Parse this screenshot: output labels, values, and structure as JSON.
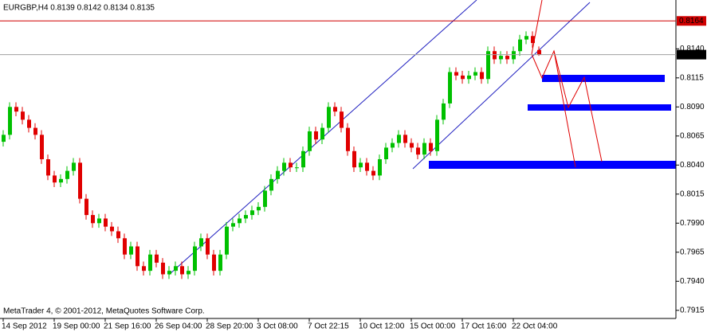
{
  "chart_data": {
    "type": "candlestick",
    "title": "EURGBP,H4  0.8139 0.8142 0.8134 0.8135",
    "footer": "MetaTrader 4, © 2001-2012, MetaQuotes Software Corp.",
    "up_color": "#00c000",
    "down_color": "#e00000",
    "ylim": [
      0.7908,
      0.8182
    ],
    "yticks": [
      {
        "value": 0.814,
        "label": "0.8140"
      },
      0.8115,
      {
        "value": 0.809,
        "label": "0.8090"
      },
      0.8065,
      {
        "value": 0.804,
        "label": "0.8040"
      },
      0.8015,
      {
        "value": 0.799,
        "label": "0.7990"
      },
      0.7965,
      {
        "value": 0.794,
        "label": "0.7940"
      },
      0.7915
    ],
    "price_lines": [
      {
        "value": 0.8164,
        "color": "#d00000"
      },
      {
        "value": 0.8135,
        "color": "#a0a0a0"
      }
    ],
    "categories": [
      "14 Sep 2012",
      null,
      null,
      null,
      null,
      null,
      null,
      null,
      "19 Sep 00:00",
      null,
      null,
      null,
      null,
      null,
      null,
      null,
      "21 Sep 16:00",
      null,
      null,
      null,
      null,
      null,
      null,
      null,
      "26 Sep 04:00",
      null,
      null,
      null,
      null,
      null,
      null,
      null,
      "28 Sep 20:00",
      null,
      null,
      null,
      null,
      null,
      null,
      null,
      "3 Oct 08:00",
      null,
      null,
      null,
      null,
      null,
      null,
      null,
      "7 Oct 22:15",
      null,
      null,
      null,
      null,
      null,
      null,
      null,
      "10 Oct 12:00",
      null,
      null,
      null,
      null,
      null,
      null,
      null,
      "15 Oct 00:00",
      null,
      null,
      null,
      null,
      null,
      null,
      null,
      "17 Oct 16:00",
      null,
      null,
      null,
      null,
      null,
      null,
      null,
      "22 Oct 04:00",
      null,
      null,
      null,
      null
    ],
    "ohlc": [
      [
        0.806,
        0.807,
        0.8056,
        0.8066
      ],
      [
        0.8066,
        0.8094,
        0.8062,
        0.809
      ],
      [
        0.809,
        0.8094,
        0.8082,
        0.8086
      ],
      [
        0.8086,
        0.809,
        0.8075,
        0.8079
      ],
      [
        0.8079,
        0.8083,
        0.8068,
        0.8072
      ],
      [
        0.8072,
        0.8076,
        0.8062,
        0.8066
      ],
      [
        0.8066,
        0.807,
        0.8041,
        0.8045
      ],
      [
        0.8045,
        0.8049,
        0.8027,
        0.8031
      ],
      [
        0.8031,
        0.8035,
        0.8021,
        0.8025
      ],
      [
        0.8025,
        0.8032,
        0.8021,
        0.8028
      ],
      [
        0.8028,
        0.8039,
        0.8024,
        0.8035
      ],
      [
        0.8035,
        0.8046,
        0.8031,
        0.8042
      ],
      [
        0.8042,
        0.8046,
        0.8007,
        0.8011
      ],
      [
        0.8011,
        0.8015,
        0.7993,
        0.7997
      ],
      [
        0.7997,
        0.8001,
        0.7986,
        0.799
      ],
      [
        0.799,
        0.7998,
        0.7986,
        0.7994
      ],
      [
        0.7994,
        0.7998,
        0.7983,
        0.7987
      ],
      [
        0.7987,
        0.7991,
        0.7979,
        0.7983
      ],
      [
        0.7983,
        0.7987,
        0.7973,
        0.7977
      ],
      [
        0.7977,
        0.7981,
        0.7959,
        0.7963
      ],
      [
        0.7963,
        0.7974,
        0.7959,
        0.797
      ],
      [
        0.797,
        0.7974,
        0.7949,
        0.7953
      ],
      [
        0.7953,
        0.7957,
        0.7945,
        0.7949
      ],
      [
        0.7949,
        0.7967,
        0.7945,
        0.7963
      ],
      [
        0.7963,
        0.7967,
        0.7952,
        0.7956
      ],
      [
        0.7956,
        0.796,
        0.7942,
        0.7946
      ],
      [
        0.7946,
        0.7953,
        0.7942,
        0.7949
      ],
      [
        0.7949,
        0.7957,
        0.7945,
        0.7953
      ],
      [
        0.7953,
        0.7957,
        0.7942,
        0.7946
      ],
      [
        0.7946,
        0.7953,
        0.7942,
        0.7949
      ],
      [
        0.7949,
        0.7974,
        0.7945,
        0.797
      ],
      [
        0.797,
        0.7981,
        0.7966,
        0.7977
      ],
      [
        0.7977,
        0.7981,
        0.7959,
        0.7963
      ],
      [
        0.7963,
        0.7967,
        0.7945,
        0.7949
      ],
      [
        0.7949,
        0.7967,
        0.7945,
        0.7963
      ],
      [
        0.7963,
        0.7991,
        0.7959,
        0.7987
      ],
      [
        0.7987,
        0.7994,
        0.7983,
        0.799
      ],
      [
        0.799,
        0.7998,
        0.7986,
        0.7994
      ],
      [
        0.7994,
        0.8001,
        0.799,
        0.7997
      ],
      [
        0.7997,
        0.8005,
        0.7993,
        0.8001
      ],
      [
        0.8001,
        0.8008,
        0.7997,
        0.8004
      ],
      [
        0.8004,
        0.8022,
        0.8,
        0.8018
      ],
      [
        0.8018,
        0.8032,
        0.8014,
        0.8028
      ],
      [
        0.8028,
        0.8039,
        0.8024,
        0.8035
      ],
      [
        0.8035,
        0.8046,
        0.8031,
        0.8042
      ],
      [
        0.8042,
        0.8046,
        0.8034,
        0.8038
      ],
      [
        0.8038,
        0.8042,
        0.8034,
        0.8038
      ],
      [
        0.8038,
        0.8056,
        0.8034,
        0.8052
      ],
      [
        0.8052,
        0.8073,
        0.8048,
        0.8069
      ],
      [
        0.8069,
        0.8073,
        0.8058,
        0.8062
      ],
      [
        0.8062,
        0.8076,
        0.8058,
        0.8072
      ],
      [
        0.8072,
        0.8094,
        0.8068,
        0.809
      ],
      [
        0.809,
        0.8094,
        0.8082,
        0.8086
      ],
      [
        0.8086,
        0.809,
        0.8068,
        0.8072
      ],
      [
        0.8072,
        0.8076,
        0.8048,
        0.8052
      ],
      [
        0.8052,
        0.8056,
        0.8034,
        0.8038
      ],
      [
        0.8038,
        0.8046,
        0.8034,
        0.8042
      ],
      [
        0.8042,
        0.8046,
        0.8031,
        0.8035
      ],
      [
        0.8035,
        0.8039,
        0.8027,
        0.8031
      ],
      [
        0.8031,
        0.8049,
        0.8027,
        0.8045
      ],
      [
        0.8045,
        0.8059,
        0.8041,
        0.8055
      ],
      [
        0.8055,
        0.8063,
        0.8051,
        0.8059
      ],
      [
        0.8059,
        0.807,
        0.8055,
        0.8066
      ],
      [
        0.8066,
        0.807,
        0.8055,
        0.8059
      ],
      [
        0.8059,
        0.8063,
        0.8051,
        0.8055
      ],
      [
        0.8055,
        0.8059,
        0.8045,
        0.8049
      ],
      [
        0.8049,
        0.8063,
        0.8045,
        0.8059
      ],
      [
        0.8059,
        0.8063,
        0.8048,
        0.8052
      ],
      [
        0.8052,
        0.8083,
        0.8048,
        0.8079
      ],
      [
        0.8079,
        0.8097,
        0.8075,
        0.8093
      ],
      [
        0.8093,
        0.8124,
        0.8089,
        0.812
      ],
      [
        0.812,
        0.8124,
        0.8113,
        0.8117
      ],
      [
        0.8117,
        0.8121,
        0.811,
        0.8114
      ],
      [
        0.8114,
        0.8121,
        0.811,
        0.8117
      ],
      [
        0.8117,
        0.8124,
        0.8113,
        0.812
      ],
      [
        0.812,
        0.8124,
        0.811,
        0.8114
      ],
      [
        0.8114,
        0.8142,
        0.811,
        0.8138
      ],
      [
        0.8138,
        0.8142,
        0.8127,
        0.8131
      ],
      [
        0.8131,
        0.8138,
        0.8127,
        0.8134
      ],
      [
        0.8134,
        0.8138,
        0.8127,
        0.8131
      ],
      [
        0.8131,
        0.8142,
        0.8127,
        0.8138
      ],
      [
        0.8138,
        0.8152,
        0.8134,
        0.8148
      ],
      [
        0.8148,
        0.8155,
        0.8144,
        0.8151
      ],
      [
        0.8151,
        0.8155,
        0.8141,
        0.8145
      ],
      [
        0.8139,
        0.8142,
        0.8134,
        0.8135
      ]
    ]
  }
}
